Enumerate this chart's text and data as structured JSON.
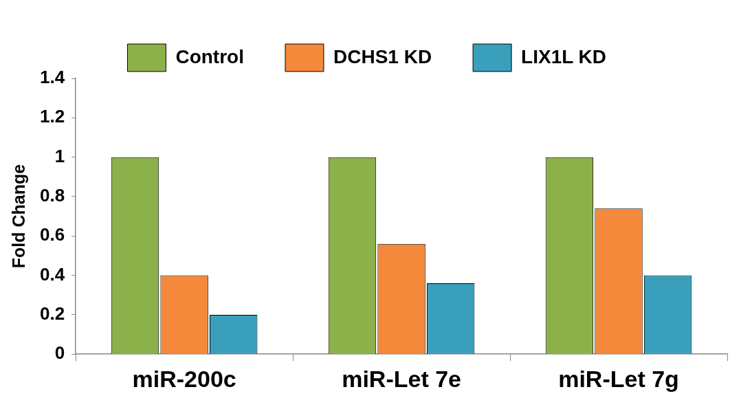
{
  "chart_data": {
    "type": "bar",
    "ylabel": "Fold Change",
    "categories": [
      "miR-200c",
      "miR-Let 7e",
      "miR-Let 7g"
    ],
    "series": [
      {
        "name": "Control",
        "color": "#8db14a",
        "values": [
          1,
          1,
          1
        ]
      },
      {
        "name": "DCHS1 KD",
        "color": "#f4893b",
        "values": [
          0.4,
          0.56,
          0.74
        ]
      },
      {
        "name": "LIX1L KD",
        "color": "#3a9fbb",
        "values": [
          0.2,
          0.36,
          0.4
        ]
      }
    ],
    "ylim": [
      0,
      1.4
    ],
    "yticks": [
      0,
      {
        "value": 0.2,
        "label": "0.2"
      },
      {
        "value": 0.4,
        "label": "0.4"
      },
      {
        "value": 0.6,
        "label": "0.6"
      },
      {
        "value": 0.8,
        "label": "0.8"
      },
      1,
      {
        "value": 1.2,
        "label": "1.2"
      },
      {
        "value": 1.4,
        "label": "1.4"
      }
    ],
    "grid": false,
    "legend": "top"
  }
}
